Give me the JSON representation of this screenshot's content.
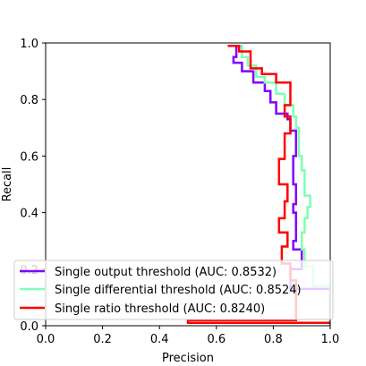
{
  "chart_data": {
    "type": "line",
    "title": "",
    "xlabel": "Precision",
    "ylabel": "Recall",
    "xlim": [
      0.0,
      1.0
    ],
    "ylim": [
      0.0,
      1.0
    ],
    "xticks": [
      "0.0",
      "0.2",
      "0.4",
      "0.6",
      "0.8",
      "1.0"
    ],
    "yticks": [
      "0.0",
      "0.2",
      "0.4",
      "0.6",
      "0.8",
      "1.0"
    ],
    "grid": false,
    "legend_position": "lower-left",
    "series": [
      {
        "name": "Single output threshold (AUC: 0.8532)",
        "color": "#8000ff",
        "points": [
          [
            0.64,
            0.99
          ],
          [
            0.67,
            0.99
          ],
          [
            0.67,
            0.95
          ],
          [
            0.66,
            0.95
          ],
          [
            0.66,
            0.93
          ],
          [
            0.69,
            0.93
          ],
          [
            0.69,
            0.9
          ],
          [
            0.73,
            0.9
          ],
          [
            0.73,
            0.86
          ],
          [
            0.77,
            0.86
          ],
          [
            0.77,
            0.83
          ],
          [
            0.79,
            0.83
          ],
          [
            0.79,
            0.79
          ],
          [
            0.81,
            0.79
          ],
          [
            0.81,
            0.75
          ],
          [
            0.85,
            0.75
          ],
          [
            0.85,
            0.73
          ],
          [
            0.86,
            0.73
          ],
          [
            0.86,
            0.69
          ],
          [
            0.88,
            0.69
          ],
          [
            0.88,
            0.6
          ],
          [
            0.87,
            0.6
          ],
          [
            0.87,
            0.5
          ],
          [
            0.88,
            0.5
          ],
          [
            0.88,
            0.43
          ],
          [
            0.87,
            0.43
          ],
          [
            0.87,
            0.4
          ],
          [
            0.88,
            0.4
          ],
          [
            0.88,
            0.3
          ],
          [
            0.87,
            0.3
          ],
          [
            0.87,
            0.27
          ],
          [
            0.9,
            0.27
          ],
          [
            0.9,
            0.2
          ],
          [
            0.86,
            0.2
          ],
          [
            0.86,
            0.13
          ],
          [
            1.0,
            0.13
          ],
          [
            1.0,
            0.0
          ]
        ]
      },
      {
        "name": "Single differential threshold (AUC: 0.8524)",
        "color": "#80ffb4",
        "points": [
          [
            0.66,
            0.99
          ],
          [
            0.69,
            0.99
          ],
          [
            0.69,
            0.95
          ],
          [
            0.71,
            0.95
          ],
          [
            0.71,
            0.92
          ],
          [
            0.74,
            0.92
          ],
          [
            0.74,
            0.88
          ],
          [
            0.77,
            0.88
          ],
          [
            0.77,
            0.86
          ],
          [
            0.81,
            0.86
          ],
          [
            0.81,
            0.82
          ],
          [
            0.84,
            0.82
          ],
          [
            0.84,
            0.78
          ],
          [
            0.87,
            0.78
          ],
          [
            0.87,
            0.74
          ],
          [
            0.88,
            0.74
          ],
          [
            0.88,
            0.7
          ],
          [
            0.89,
            0.7
          ],
          [
            0.89,
            0.6
          ],
          [
            0.9,
            0.6
          ],
          [
            0.9,
            0.55
          ],
          [
            0.91,
            0.55
          ],
          [
            0.91,
            0.46
          ],
          [
            0.93,
            0.46
          ],
          [
            0.93,
            0.42
          ],
          [
            0.92,
            0.42
          ],
          [
            0.92,
            0.38
          ],
          [
            0.91,
            0.38
          ],
          [
            0.91,
            0.33
          ],
          [
            0.9,
            0.33
          ],
          [
            0.9,
            0.27
          ],
          [
            0.91,
            0.27
          ],
          [
            0.91,
            0.21
          ],
          [
            0.94,
            0.21
          ],
          [
            0.94,
            0.14
          ],
          [
            1.0,
            0.14
          ],
          [
            1.0,
            0.0
          ]
        ]
      },
      {
        "name": "Single ratio threshold (AUC: 0.8240)",
        "color": "#ff0000",
        "points": [
          [
            0.64,
            0.99
          ],
          [
            0.68,
            0.99
          ],
          [
            0.68,
            0.97
          ],
          [
            0.72,
            0.97
          ],
          [
            0.72,
            0.91
          ],
          [
            0.76,
            0.91
          ],
          [
            0.76,
            0.89
          ],
          [
            0.81,
            0.89
          ],
          [
            0.81,
            0.86
          ],
          [
            0.86,
            0.86
          ],
          [
            0.86,
            0.78
          ],
          [
            0.84,
            0.78
          ],
          [
            0.84,
            0.74
          ],
          [
            0.86,
            0.74
          ],
          [
            0.86,
            0.68
          ],
          [
            0.84,
            0.68
          ],
          [
            0.84,
            0.59
          ],
          [
            0.82,
            0.59
          ],
          [
            0.82,
            0.5
          ],
          [
            0.85,
            0.5
          ],
          [
            0.85,
            0.44
          ],
          [
            0.84,
            0.44
          ],
          [
            0.84,
            0.38
          ],
          [
            0.82,
            0.38
          ],
          [
            0.82,
            0.33
          ],
          [
            0.85,
            0.33
          ],
          [
            0.85,
            0.28
          ],
          [
            0.83,
            0.28
          ],
          [
            0.83,
            0.22
          ],
          [
            0.86,
            0.22
          ],
          [
            0.86,
            0.16
          ],
          [
            0.88,
            0.16
          ],
          [
            0.88,
            0.02
          ],
          [
            0.5,
            0.02
          ],
          [
            0.5,
            0.01
          ],
          [
            1.0,
            0.01
          ]
        ]
      }
    ]
  }
}
